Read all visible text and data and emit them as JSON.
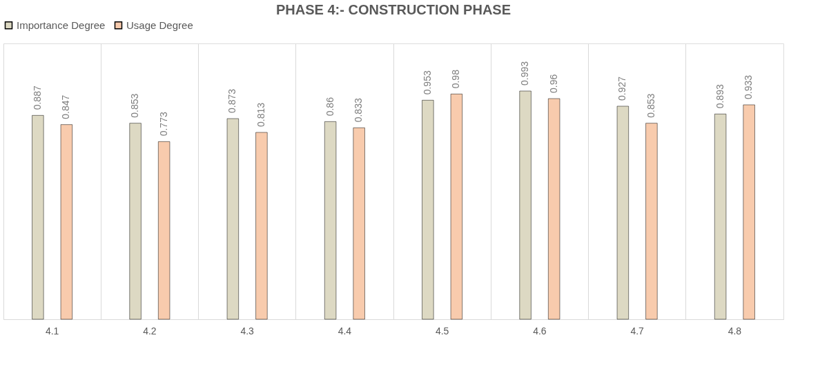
{
  "chart_data": {
    "type": "bar",
    "title": "PHASE 4:- CONSTRUCTION PHASE",
    "categories": [
      "4.1",
      "4.2",
      "4.3",
      "4.4",
      "4.5",
      "4.6",
      "4.7",
      "4.8"
    ],
    "series": [
      {
        "name": "Importance Degree",
        "color": "#ddd9c3",
        "values": [
          0.887,
          0.853,
          0.873,
          0.86,
          0.953,
          0.993,
          0.927,
          0.893
        ]
      },
      {
        "name": "Usage Degree",
        "color": "#f8cbad",
        "values": [
          0.847,
          0.773,
          0.813,
          0.833,
          0.98,
          0.96,
          0.853,
          0.933
        ]
      }
    ],
    "ylim": [
      0,
      1.2
    ],
    "data_labels": true,
    "legend": "top",
    "grid": "x",
    "tick_labels": "x"
  }
}
